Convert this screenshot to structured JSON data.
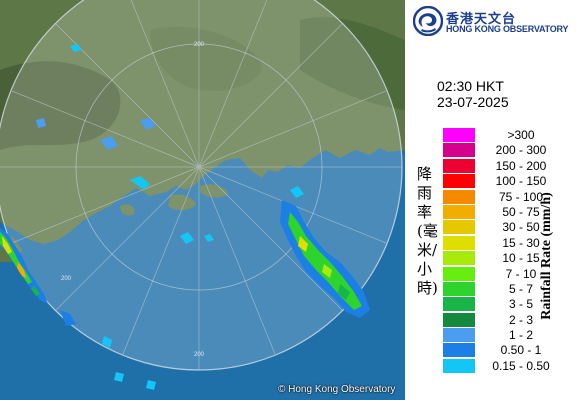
{
  "agency": {
    "name_cn": "香港天文台",
    "name_en": "HONG KONG OBSERVATORY",
    "logo_icon": "hko-emblem-icon",
    "credit": "© Hong Kong Observatory"
  },
  "time": "02:30 HKT",
  "date": "23-07-2025",
  "legend": {
    "title_cn": "降雨率(毫米/小時)",
    "title_en": "Rainfall Rate (mm/h)",
    "items": [
      {
        "label": ">300",
        "color": "#ff00ff"
      },
      {
        "label": "200 - 300",
        "color": "#d6008c"
      },
      {
        "label": "150 - 200",
        "color": "#ee0033"
      },
      {
        "label": "100 - 150",
        "color": "#ff0000"
      },
      {
        "label": "75 - 100",
        "color": "#f58a00"
      },
      {
        "label": "50 - 75",
        "color": "#f2ad00"
      },
      {
        "label": "30 - 50",
        "color": "#e5c800"
      },
      {
        "label": "15 - 30",
        "color": "#dede00"
      },
      {
        "label": "10 - 15",
        "color": "#a8ea0b"
      },
      {
        "label": "7 - 10",
        "color": "#66ee11"
      },
      {
        "label": "5 - 7",
        "color": "#2ed32e"
      },
      {
        "label": "3 - 5",
        "color": "#19b44a"
      },
      {
        "label": "2 - 3",
        "color": "#138a3e"
      },
      {
        "label": "1 - 2",
        "color": "#4c9cf0"
      },
      {
        "label": "0.50 - 1",
        "color": "#1b7fe5"
      },
      {
        "label": "0.15 - 0.50",
        "color": "#13c6f5"
      }
    ]
  },
  "range_labels": {
    "north": "200",
    "west": "200",
    "south": "200"
  }
}
